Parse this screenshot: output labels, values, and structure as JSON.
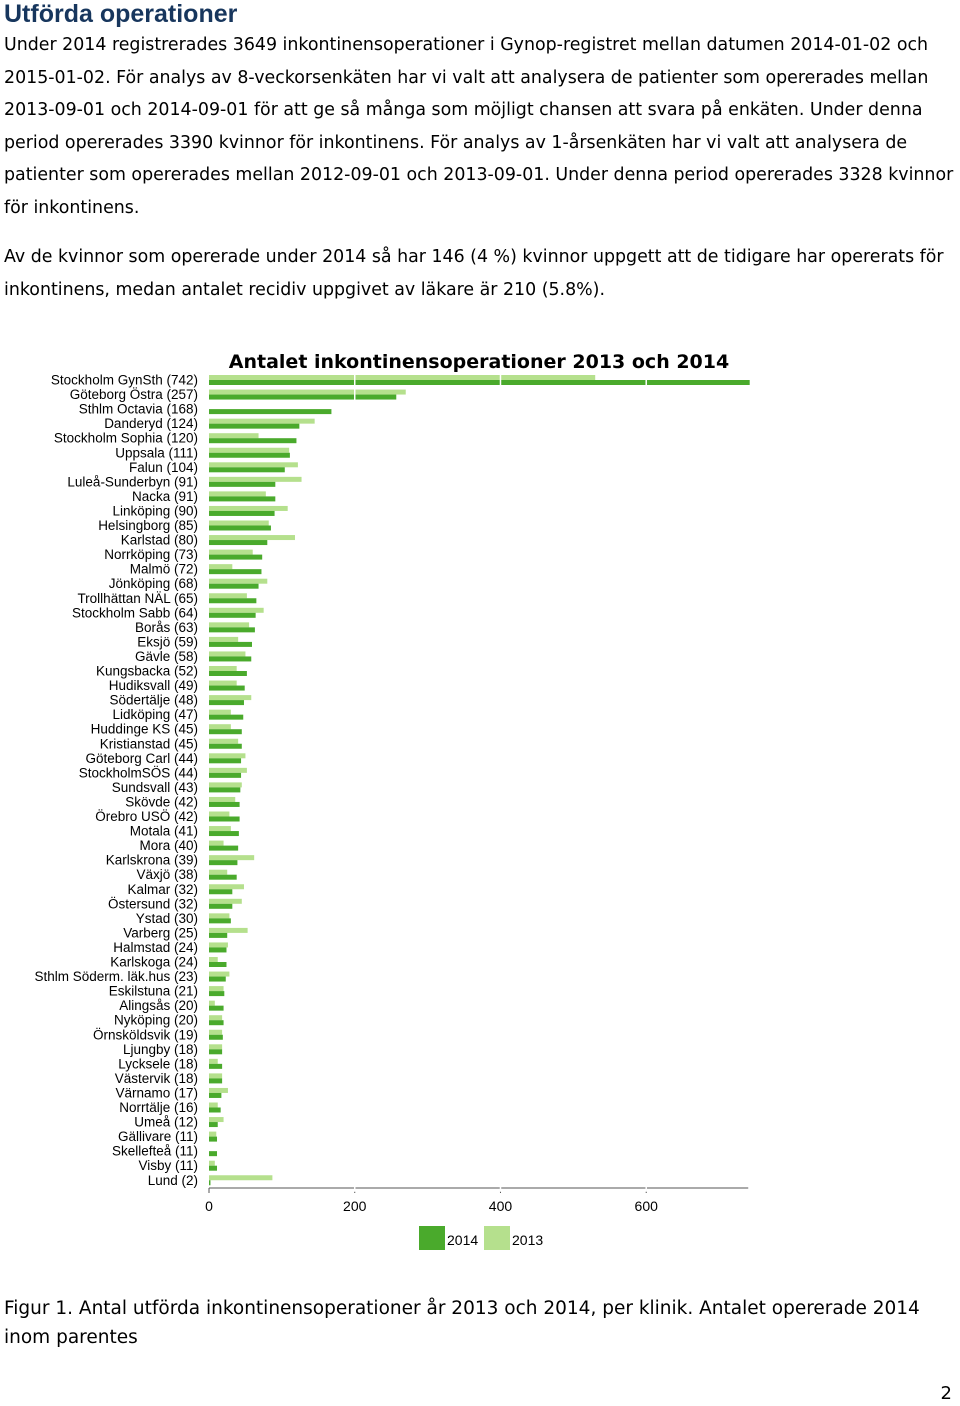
{
  "document": {
    "heading": "Utförda operationer",
    "paragraph1": "Under 2014 registrerades 3649 inkontinensoperationer i Gynop-registret mellan datumen 2014-01-02 och 2015-01-02. För analys av 8-veckorsenkäten har vi valt att analysera de patienter som opererades mellan 2013-09-01 och 2014-09-01 för att ge så många som möjligt chansen att svara på enkäten. Under denna period opererades 3390 kvinnor för inkontinens. För analys av 1-årsenkäten har vi valt att analysera de patienter som opererades mellan 2012-09-01 och 2013-09-01. Under denna period opererades 3328 kvinnor för inkontinens.",
    "paragraph2": "Av de kvinnor som opererade under 2014 så har 146 (4 %) kvinnor uppgett att de tidigare har opererats för inkontinens, medan antalet recidiv uppgivet av läkare är 210 (5.8%).",
    "caption": "Figur 1. Antal utförda inkontinensoperationer år 2013 och 2014, per klinik. Antalet opererade 2014 inom parentes",
    "page_number": "2"
  },
  "chart_data": {
    "type": "bar",
    "orientation": "horizontal",
    "title": "Antalet inkontinensoperationer 2013 och 2014",
    "xlim": [
      0,
      740
    ],
    "xticks": [
      0,
      200,
      400,
      600
    ],
    "grid": "vertical white lines",
    "legend_position": "bottom",
    "colors": {
      "2014": "#4aaa2c",
      "2013": "#b5e08d"
    },
    "categories": [
      "Stockholm GynSth (742)",
      "Göteborg Östra (257)",
      "Sthlm Octavia (168)",
      "Danderyd (124)",
      "Stockholm Sophia (120)",
      "Uppsala (111)",
      "Falun (104)",
      "Luleå-Sunderbyn (91)",
      "Nacka (91)",
      "Linköping (90)",
      "Helsingborg (85)",
      "Karlstad (80)",
      "Norrköping (73)",
      "Malmö (72)",
      "Jönköping (68)",
      "Trollhättan NÄL (65)",
      "Stockholm Sabb (64)",
      "Borås (63)",
      "Eksjö (59)",
      "Gävle (58)",
      "Kungsbacka (52)",
      "Hudiksvall (49)",
      "Södertälje (48)",
      "Lidköping (47)",
      "Huddinge KS (45)",
      "Kristianstad (45)",
      "Göteborg Carl (44)",
      "StockholmSÖS (44)",
      "Sundsvall (43)",
      "Skövde (42)",
      "Örebro USÖ (42)",
      "Motala (41)",
      "Mora (40)",
      "Karlskrona (39)",
      "Växjö (38)",
      "Kalmar (32)",
      "Östersund (32)",
      "Ystad (30)",
      "Varberg (25)",
      "Halmstad (24)",
      "Karlskoga (24)",
      "Sthlm Söderm. läk.hus (23)",
      "Eskilstuna (21)",
      "Alingsås (20)",
      "Nyköping (20)",
      "Örnsköldsvik (19)",
      "Ljungby (18)",
      "Lycksele (18)",
      "Västervik (18)",
      "Värnamo (17)",
      "Norrtälje (16)",
      "Umeå (12)",
      "Gällivare (11)",
      "Skellefteå (11)",
      "Visby (11)",
      "Lund (2)"
    ],
    "series": [
      {
        "name": "2014",
        "values": [
          742,
          257,
          168,
          124,
          120,
          111,
          104,
          91,
          91,
          90,
          85,
          80,
          73,
          72,
          68,
          65,
          64,
          63,
          59,
          58,
          52,
          49,
          48,
          47,
          45,
          45,
          44,
          44,
          43,
          42,
          42,
          41,
          40,
          39,
          38,
          32,
          32,
          30,
          25,
          24,
          24,
          23,
          21,
          20,
          20,
          19,
          18,
          18,
          18,
          17,
          16,
          12,
          11,
          11,
          11,
          2
        ]
      },
      {
        "name": "2013",
        "values": [
          530,
          270,
          0,
          145,
          68,
          110,
          122,
          127,
          78,
          108,
          82,
          118,
          60,
          32,
          80,
          52,
          75,
          55,
          40,
          50,
          38,
          38,
          58,
          30,
          30,
          40,
          50,
          52,
          45,
          36,
          28,
          30,
          20,
          62,
          25,
          48,
          45,
          28,
          53,
          26,
          12,
          28,
          20,
          8,
          18,
          18,
          18,
          12,
          18,
          26,
          12,
          20,
          10,
          0,
          8,
          87
        ]
      }
    ]
  }
}
